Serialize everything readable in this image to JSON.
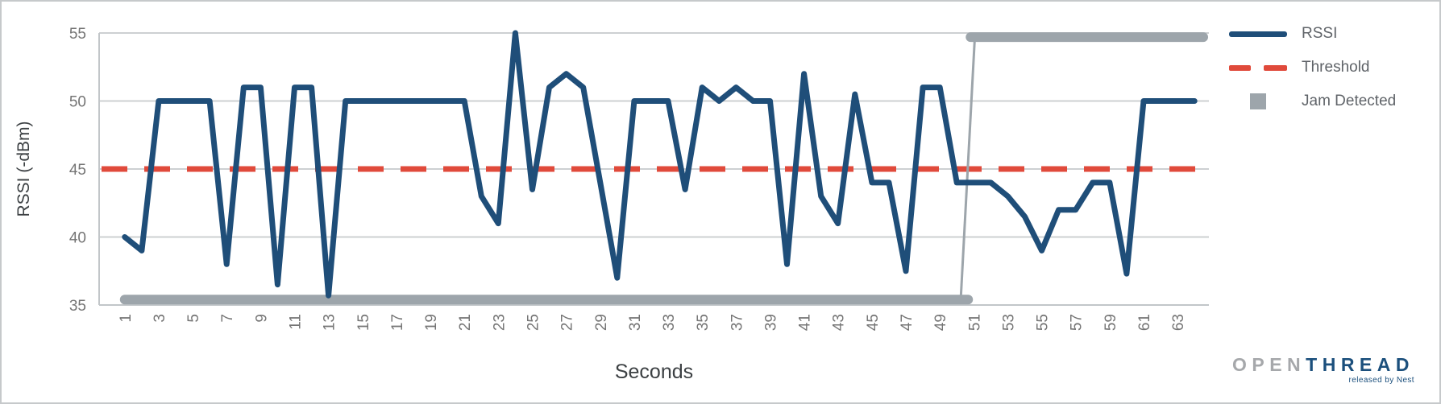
{
  "chart_data": {
    "type": "line",
    "title": "",
    "xlabel": "Seconds",
    "ylabel": "RSSI (-dBm)",
    "ylim": [
      35,
      55
    ],
    "yticks": [
      55,
      50,
      45,
      40,
      35
    ],
    "xticks": [
      1,
      3,
      5,
      7,
      9,
      11,
      13,
      15,
      17,
      19,
      21,
      23,
      25,
      27,
      29,
      31,
      33,
      35,
      37,
      39,
      41,
      43,
      45,
      47,
      49,
      51,
      53,
      55,
      57,
      59,
      61,
      63
    ],
    "x_start": 1,
    "x_end": 64,
    "grid": true,
    "legend_position": "top-right",
    "series": [
      {
        "name": "RSSI",
        "type": "line",
        "color": "#1F4E79",
        "values": [
          40,
          39,
          50,
          50,
          50,
          50,
          38,
          51,
          51,
          36.5,
          51,
          51,
          35.7,
          50,
          50,
          50,
          50,
          50,
          50,
          50,
          50,
          43,
          41,
          55,
          43.5,
          51,
          52,
          51,
          44,
          37,
          50,
          50,
          50,
          43.5,
          51,
          50,
          51,
          50,
          50,
          38,
          52,
          43,
          41,
          50.5,
          44,
          44,
          37.5,
          51,
          51,
          44,
          44,
          44,
          43,
          41.5,
          39,
          42,
          42,
          44,
          44,
          37.3,
          50,
          50,
          50,
          50
        ]
      },
      {
        "name": "Threshold",
        "type": "dashed-line",
        "color": "#E04A3B",
        "value": 45
      },
      {
        "name": "Jam Detected",
        "type": "thick-line",
        "color": "#9DA5AB",
        "low_value": 35.4,
        "high_value": 54.7,
        "low_through_second": 50,
        "high_from_second": 51
      }
    ],
    "axis_text_color": "#757575",
    "axis_title_color": "#3c4043",
    "gridline_color": "#cdd0d2",
    "axis_line_color": "#c2c6c9"
  },
  "logo": {
    "part1": "OPEN",
    "part2": "THREAD",
    "tagline": "released by Nest"
  }
}
